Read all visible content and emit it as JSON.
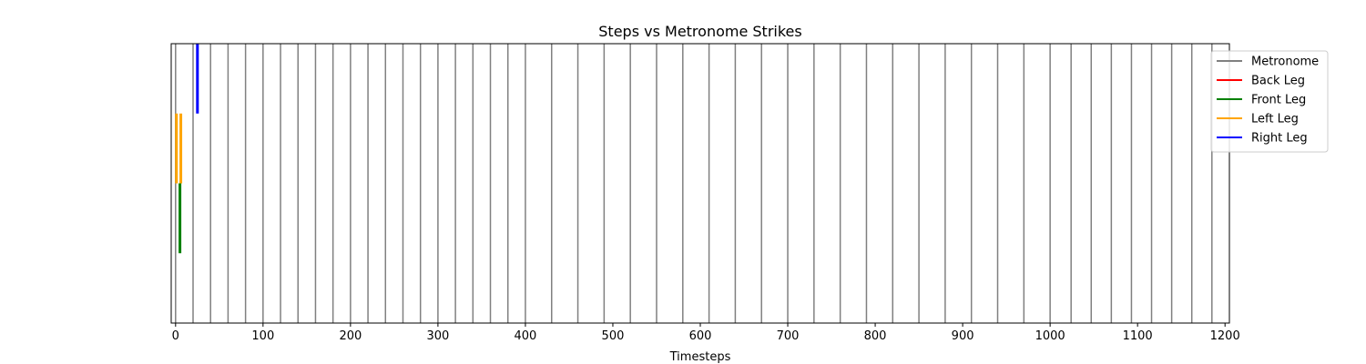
{
  "chart_data": {
    "type": "event-raster",
    "title": "Steps vs Metronome Strikes",
    "xlabel": "Timesteps",
    "ylabel": "",
    "xlim": [
      -5,
      1205
    ],
    "xticks": [
      0,
      100,
      200,
      300,
      400,
      500,
      600,
      700,
      800,
      900,
      1000,
      1100,
      1200
    ],
    "xtick_labels": [
      "0",
      "100",
      "200",
      "300",
      "400",
      "500",
      "600",
      "700",
      "800",
      "900",
      "1000",
      "1100",
      "1200"
    ],
    "legend_position": "upper-right-outside",
    "grid": false,
    "metronome": {
      "name": "Metronome",
      "color": "#808080",
      "strikes": [
        0,
        20,
        40,
        60,
        80,
        100,
        120,
        140,
        160,
        180,
        200,
        220,
        240,
        260,
        280,
        300,
        320,
        340,
        360,
        380,
        400,
        430,
        460,
        490,
        520,
        550,
        580,
        610,
        640,
        670,
        700,
        730,
        760,
        790,
        820,
        850,
        880,
        910,
        940,
        970,
        1000,
        1024,
        1047,
        1070,
        1093,
        1116,
        1139,
        1162,
        1185
      ]
    },
    "series": [
      {
        "name": "Back Leg",
        "color": "#ff0000",
        "events": []
      },
      {
        "name": "Front Leg",
        "color": "#008000",
        "events": [
          5
        ]
      },
      {
        "name": "Left Leg",
        "color": "#ffa500",
        "events": [
          1,
          6
        ]
      },
      {
        "name": "Right Leg",
        "color": "#0000ff",
        "events": [
          25
        ]
      }
    ]
  }
}
